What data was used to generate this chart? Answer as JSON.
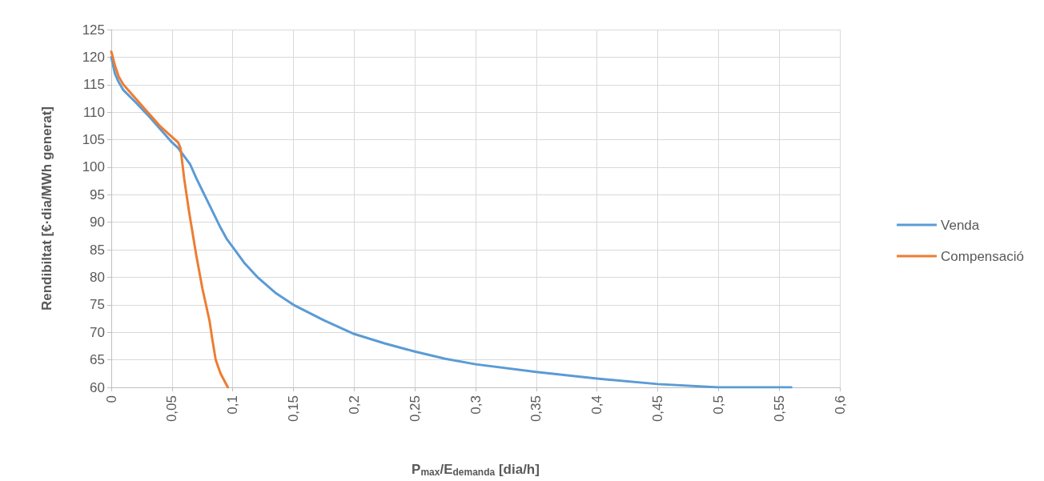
{
  "chart_data": {
    "type": "line",
    "xlabel": "P$_{max}$/E$_{demanda}$ [dia/h]",
    "ylabel": "Rendibiltat [€·dia/MWh generat]",
    "xlim": [
      0,
      0.6
    ],
    "xticks": [
      0,
      {
        "value": 0.05,
        "label": "0,05"
      },
      {
        "value": 0.1,
        "label": "0,1"
      },
      {
        "value": 0.15,
        "label": "0,15"
      },
      {
        "value": 0.2,
        "label": "0,2"
      },
      {
        "value": 0.25,
        "label": "0,25"
      },
      {
        "value": 0.3,
        "label": "0,3"
      },
      {
        "value": 0.35,
        "label": "0,35"
      },
      {
        "value": 0.4,
        "label": "0,4"
      },
      {
        "value": 0.45,
        "label": "0,45"
      },
      {
        "value": 0.5,
        "label": "0,5"
      },
      {
        "value": 0.55,
        "label": "0,55"
      },
      {
        "value": 0.6,
        "label": "0,6"
      }
    ],
    "ylim": [
      60,
      125
    ],
    "yticks": [
      60,
      65,
      70,
      75,
      80,
      85,
      90,
      95,
      100,
      105,
      110,
      115,
      120,
      125
    ],
    "grid": true,
    "legend": "right",
    "marker": "none",
    "line_style": "solid",
    "series": [
      {
        "name": "Venda",
        "color": "#5b9bd5",
        "x": [
          0,
          0.003,
          0.006,
          0.01,
          0.02,
          0.03,
          0.04,
          0.05,
          0.055,
          0.06,
          0.065,
          0.07,
          0.08,
          0.09,
          0.095,
          0.1,
          0.11,
          0.121,
          0.135,
          0.15,
          0.175,
          0.2,
          0.225,
          0.25,
          0.275,
          0.3,
          0.35,
          0.4,
          0.45,
          0.5,
          0.56
        ],
        "values": [
          120,
          117,
          115.5,
          114,
          111.8,
          109.5,
          107,
          104.5,
          103.5,
          102,
          100.5,
          98,
          93.5,
          89,
          87,
          85.5,
          82.5,
          79.9,
          77.2,
          75,
          72.2,
          69.7,
          68,
          66.5,
          65.2,
          64.2,
          62.8,
          61.6,
          60.6,
          60,
          60
        ]
      },
      {
        "name": "Compensació",
        "color": "#ed7d31",
        "x": [
          0,
          0.003,
          0.006,
          0.01,
          0.02,
          0.03,
          0.04,
          0.05,
          0.055,
          0.057,
          0.06,
          0.064,
          0.07,
          0.075,
          0.081,
          0.083,
          0.086,
          0.09,
          0.096
        ],
        "values": [
          121,
          118.5,
          116.5,
          115,
          112.5,
          110,
          107.5,
          105.5,
          104.5,
          103.5,
          98,
          92,
          84,
          78,
          72,
          69,
          65,
          62.5,
          60
        ]
      }
    ]
  }
}
